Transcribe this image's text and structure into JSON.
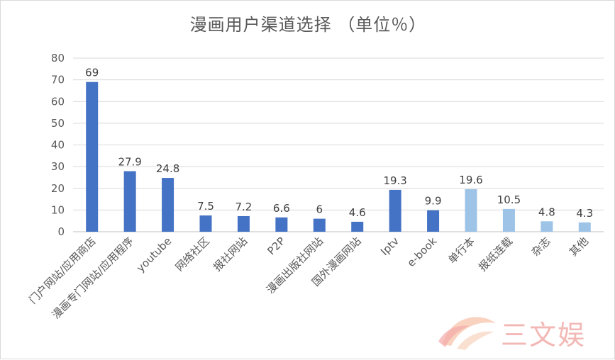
{
  "chart_data": {
    "type": "bar",
    "title": "漫画用户渠道选择 （单位％）",
    "categories": [
      "门户网站/应用商店",
      "漫画专门网站/应用程序",
      "youtube",
      "网络社区",
      "报社网站",
      "P2P",
      "漫画出版社网站",
      "国外漫画网站",
      "Iptv",
      "e-book",
      "单行本",
      "报纸连载",
      "杂志",
      "其他"
    ],
    "values": [
      69,
      27.9,
      24.8,
      7.5,
      7.2,
      6.6,
      6,
      4.6,
      19.3,
      9.9,
      19.6,
      10.5,
      4.8,
      4.3
    ],
    "data_labels": [
      "69",
      "27.9",
      "24.8",
      "7.5",
      "7.2",
      "6.6",
      "6",
      "4.6",
      "19.3",
      "9.9",
      "19.6",
      "10.5",
      "4.8",
      "4.3"
    ],
    "bar_colors": [
      "#4472c4",
      "#4472c4",
      "#4472c4",
      "#4472c4",
      "#4472c4",
      "#4472c4",
      "#4472c4",
      "#4472c4",
      "#4472c4",
      "#4472c4",
      "#9dc3e6",
      "#9dc3e6",
      "#9dc3e6",
      "#9dc3e6"
    ],
    "ylim": [
      0,
      80
    ],
    "yticks": [
      "0",
      "10",
      "20",
      "30",
      "40",
      "50",
      "60",
      "70",
      "80"
    ],
    "grid": true,
    "xlabel": "",
    "ylabel": ""
  },
  "watermark": {
    "text": "三文娱",
    "color": "#f2b8b5"
  }
}
